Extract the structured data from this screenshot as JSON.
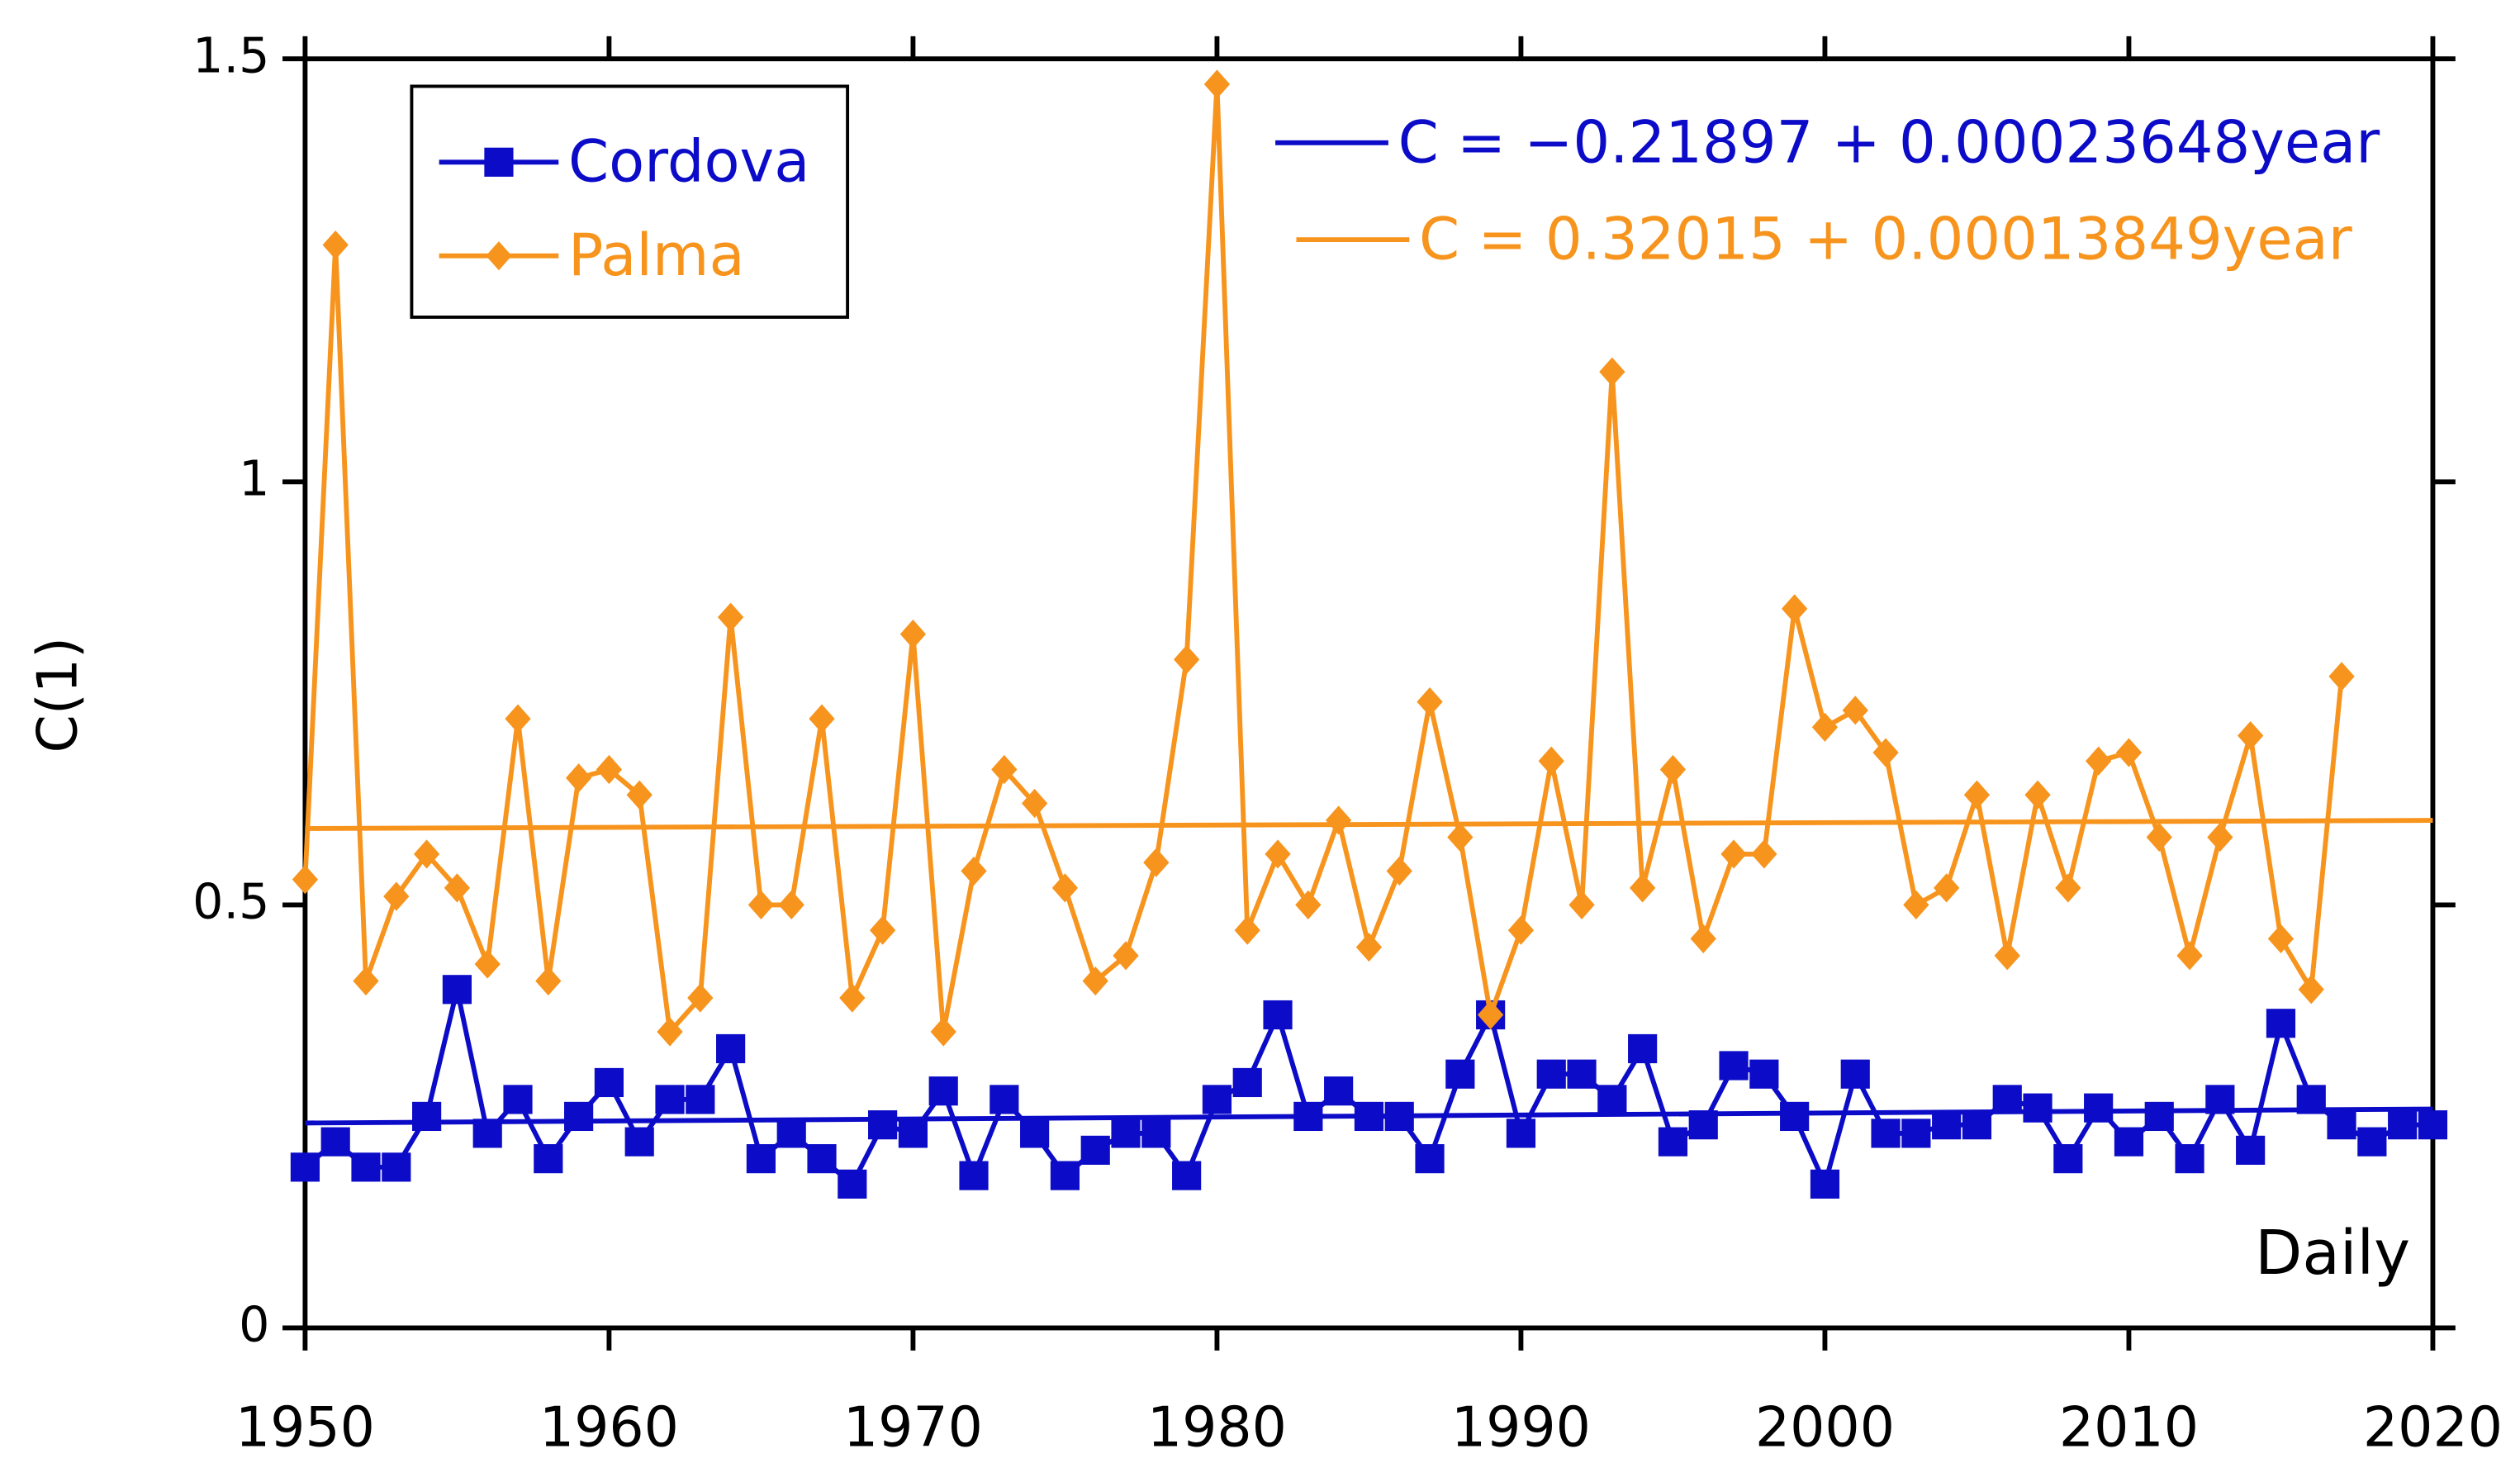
{
  "chart_data": {
    "type": "line",
    "y_label": "C(1)",
    "corner_note": "Daily",
    "x": [
      1950,
      1951,
      1952,
      1953,
      1954,
      1955,
      1956,
      1957,
      1958,
      1959,
      1960,
      1961,
      1962,
      1963,
      1964,
      1965,
      1966,
      1967,
      1968,
      1969,
      1970,
      1971,
      1972,
      1973,
      1974,
      1975,
      1976,
      1977,
      1978,
      1979,
      1980,
      1981,
      1982,
      1983,
      1984,
      1985,
      1986,
      1987,
      1988,
      1989,
      1990,
      1991,
      1992,
      1993,
      1994,
      1995,
      1996,
      1997,
      1998,
      1999,
      2000,
      2001,
      2002,
      2003,
      2004,
      2005,
      2006,
      2007,
      2008,
      2009,
      2010,
      2011,
      2012,
      2013,
      2014,
      2015,
      2016,
      2017,
      2018,
      2019,
      2020
    ],
    "series": [
      {
        "name": "Cordova",
        "color": "#0c0cc8",
        "marker": "square",
        "values": [
          0.19,
          0.22,
          0.19,
          0.19,
          0.25,
          0.4,
          0.23,
          0.27,
          0.2,
          0.25,
          0.29,
          0.22,
          0.27,
          0.27,
          0.33,
          0.2,
          0.23,
          0.2,
          0.17,
          0.24,
          0.23,
          0.28,
          0.18,
          0.27,
          0.23,
          0.18,
          0.21,
          0.23,
          0.23,
          0.18,
          0.27,
          0.29,
          0.37,
          0.25,
          0.28,
          0.25,
          0.25,
          0.2,
          0.3,
          0.37,
          0.23,
          0.3,
          0.3,
          0.27,
          0.33,
          0.22,
          0.24,
          0.31,
          0.3,
          0.25,
          0.17,
          0.3,
          0.23,
          0.23,
          0.24,
          0.24,
          0.27,
          0.26,
          0.2,
          0.26,
          0.22,
          0.25,
          0.2,
          0.27,
          0.21,
          0.36,
          0.27,
          0.24,
          0.22,
          0.24,
          0.24
        ]
      },
      {
        "name": "Palma",
        "color": "#f7941d",
        "marker": "diamond",
        "values": [
          0.53,
          1.28,
          0.41,
          0.51,
          0.56,
          0.52,
          0.43,
          0.72,
          0.41,
          0.65,
          0.66,
          0.63,
          0.35,
          0.39,
          0.84,
          0.5,
          0.5,
          0.72,
          0.39,
          0.47,
          0.82,
          0.35,
          0.54,
          0.66,
          0.62,
          0.52,
          0.41,
          0.44,
          0.55,
          0.79,
          1.47,
          0.47,
          0.56,
          0.5,
          0.6,
          0.45,
          0.54,
          0.74,
          0.58,
          0.37,
          0.47,
          0.67,
          0.5,
          1.13,
          0.52,
          0.66,
          0.46,
          0.56,
          0.56,
          0.85,
          0.71,
          0.73,
          0.68,
          0.5,
          0.52,
          0.63,
          0.44,
          0.63,
          0.52,
          0.67,
          0.68,
          0.58,
          0.44,
          0.58,
          0.7,
          0.46,
          0.4,
          0.77,
          null,
          null,
          null
        ]
      }
    ],
    "fits": [
      {
        "text": "C = −0.21897 + 0.00023648year",
        "color": "#0c0cc8",
        "intercept": -0.21897,
        "slope": 0.00023648
      },
      {
        "text": "C = 0.32015 + 0.00013849year",
        "color": "#f7941d",
        "intercept": 0.32015,
        "slope": 0.00013849
      }
    ],
    "xlim": [
      1950,
      2020
    ],
    "xticks": [
      1950,
      1960,
      1970,
      1980,
      1990,
      2000,
      2010,
      2020
    ],
    "ylim": [
      0,
      1.5
    ],
    "yticks": [
      0,
      0.5,
      1,
      1.5
    ],
    "legend": "upper left",
    "grid": false
  }
}
